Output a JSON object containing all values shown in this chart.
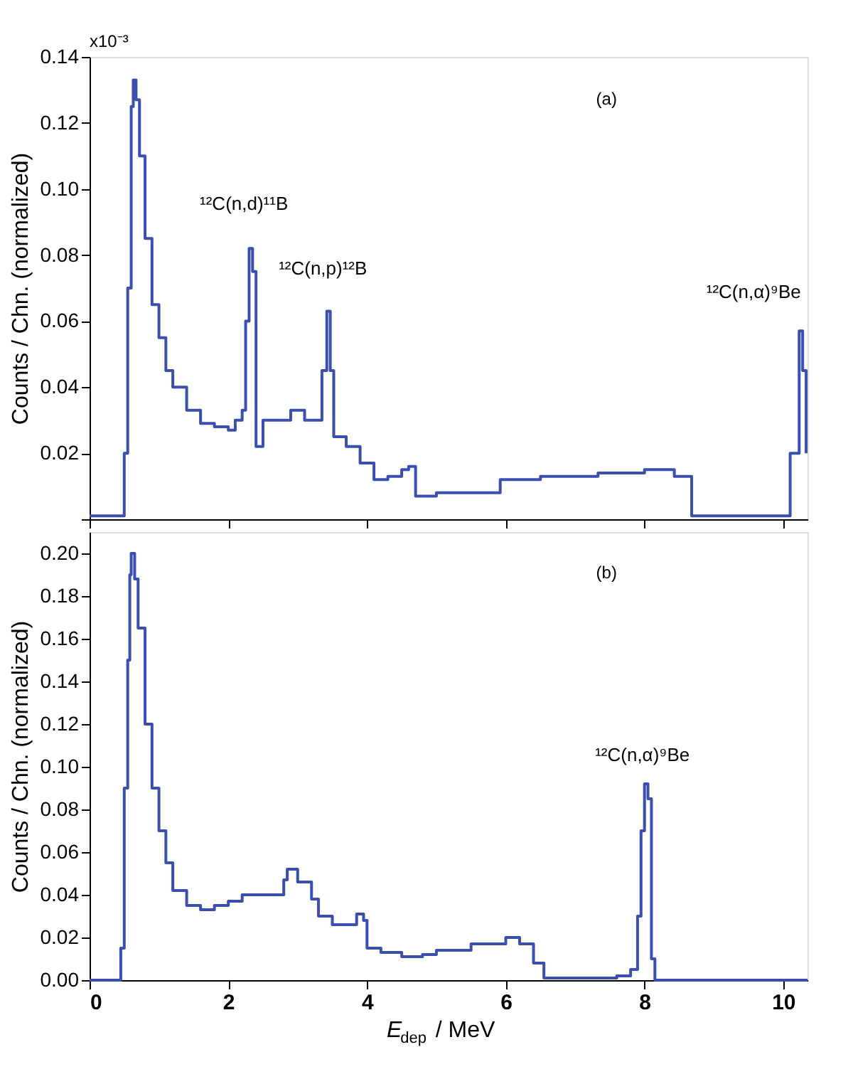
{
  "chart_data": [
    {
      "type": "step",
      "ylabel": "Counts / Chn. (normalized)",
      "xlim": [
        0,
        10.35
      ],
      "xticks": [
        0,
        2,
        4,
        6,
        8,
        10
      ],
      "ylim": [
        0,
        0.14
      ],
      "yticks": [
        {
          "value": 0,
          "label": null
        },
        0.02,
        0.04,
        0.06,
        0.08,
        {
          "value": 0.1,
          "label": "0.10"
        },
        0.12,
        0.14
      ],
      "tick_labels": "y",
      "grid": false,
      "annotations": [
        "(a)",
        "x10⁻³",
        "¹²C(n,d)¹¹B",
        "¹²C(n,p)¹²B",
        "¹²C(n,α)⁹Be"
      ],
      "series": [
        {
          "color": "#3a4fb0",
          "x": [
            0,
            0.45,
            0.5,
            0.55,
            0.6,
            0.63,
            0.67,
            0.72,
            0.8,
            0.9,
            1.0,
            1.1,
            1.2,
            1.4,
            1.6,
            1.8,
            2.0,
            2.1,
            2.2,
            2.25,
            2.3,
            2.35,
            2.4,
            2.5,
            2.7,
            2.9,
            3.1,
            3.3,
            3.35,
            3.42,
            3.47,
            3.52,
            3.7,
            3.9,
            4.1,
            4.3,
            4.5,
            4.6,
            4.7,
            5.0,
            5.5,
            5.92,
            6.5,
            7.33,
            8.0,
            8.43,
            8.68,
            9.5,
            9.98,
            10.1,
            10.23,
            10.28,
            10.33
          ],
          "values": [
            0.001,
            0.001,
            0.02,
            0.07,
            0.125,
            0.133,
            0.127,
            0.11,
            0.085,
            0.065,
            0.055,
            0.045,
            0.04,
            0.033,
            0.029,
            0.028,
            0.027,
            0.03,
            0.033,
            0.06,
            0.082,
            0.075,
            0.022,
            0.03,
            0.03,
            0.033,
            0.03,
            0.03,
            0.045,
            0.063,
            0.045,
            0.025,
            0.022,
            0.017,
            0.012,
            0.013,
            0.015,
            0.016,
            0.007,
            0.008,
            0.008,
            0.012,
            0.013,
            0.014,
            0.015,
            0.013,
            0.001,
            0.001,
            0.001,
            0.02,
            0.057,
            0.045,
            0.02
          ]
        }
      ]
    },
    {
      "type": "step",
      "xlabel": "E$_{dep}$ / MeV",
      "ylabel": "Counts / Chn. (normalized)",
      "xlim": [
        0,
        10.35
      ],
      "xticks": [
        0,
        2,
        4,
        6,
        8,
        10
      ],
      "ylim": [
        0,
        0.21
      ],
      "yticks": [
        {
          "value": 0,
          "label": "0.00"
        },
        0.02,
        0.04,
        0.06,
        0.08,
        {
          "value": 0.1,
          "label": "0.10"
        },
        0.12,
        0.14,
        0.16,
        0.18,
        {
          "value": 0.2,
          "label": "0.20"
        }
      ],
      "grid": false,
      "annotations": [
        "(b)",
        "¹²C(n,α)⁹Be"
      ],
      "series": [
        {
          "color": "#3a4fb0",
          "x": [
            0,
            0.4,
            0.45,
            0.5,
            0.55,
            0.58,
            0.6,
            0.65,
            0.7,
            0.8,
            0.9,
            1.0,
            1.1,
            1.2,
            1.4,
            1.6,
            1.8,
            2.0,
            2.2,
            2.4,
            2.6,
            2.8,
            2.85,
            3.0,
            3.2,
            3.3,
            3.5,
            3.7,
            3.85,
            3.95,
            4.0,
            4.2,
            4.5,
            4.8,
            5.0,
            5.5,
            6.0,
            6.2,
            6.4,
            6.55,
            7.0,
            7.6,
            7.8,
            7.9,
            7.95,
            8.0,
            8.05,
            8.1,
            8.15,
            10.35
          ],
          "values": [
            0,
            0,
            0.015,
            0.09,
            0.15,
            0.19,
            0.2,
            0.188,
            0.165,
            0.12,
            0.09,
            0.07,
            0.055,
            0.042,
            0.035,
            0.033,
            0.035,
            0.037,
            0.04,
            0.04,
            0.04,
            0.047,
            0.052,
            0.046,
            0.038,
            0.03,
            0.026,
            0.026,
            0.031,
            0.028,
            0.015,
            0.013,
            0.011,
            0.012,
            0.014,
            0.017,
            0.02,
            0.017,
            0.008,
            0.001,
            0.001,
            0.002,
            0.005,
            0.03,
            0.07,
            0.092,
            0.085,
            0.01,
            0,
            0
          ]
        }
      ]
    }
  ]
}
